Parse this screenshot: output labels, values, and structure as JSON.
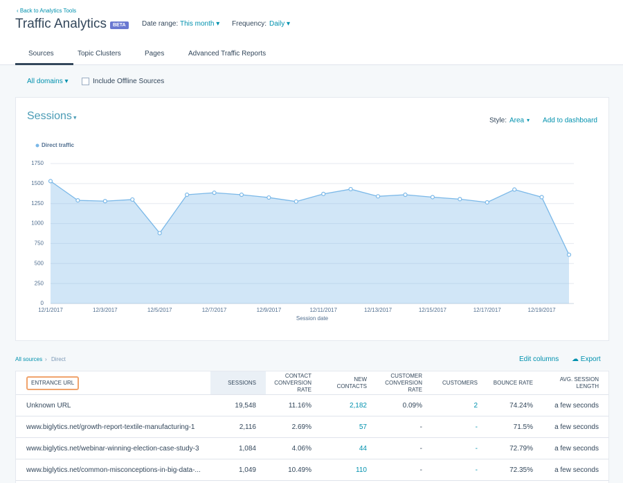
{
  "header": {
    "back_link": "Back to Analytics Tools",
    "title": "Traffic Analytics",
    "badge": "BETA",
    "date_range_label": "Date range:",
    "date_range_value": "This month",
    "frequency_label": "Frequency:",
    "frequency_value": "Daily"
  },
  "tabs": [
    "Sources",
    "Topic Clusters",
    "Pages",
    "Advanced Traffic Reports"
  ],
  "filters": {
    "domains": "All domains",
    "offline": "Include Offline Sources"
  },
  "chart_data": {
    "type": "area",
    "title": "Sessions",
    "style_label": "Style:",
    "style_value": "Area",
    "add_link": "Add to dashboard",
    "x_label": "Session date",
    "categories": [
      "12/1/2017",
      null,
      "12/3/2017",
      null,
      "12/5/2017",
      null,
      "12/7/2017",
      null,
      "12/9/2017",
      null,
      "12/11/2017",
      null,
      "12/13/2017",
      null,
      "12/15/2017",
      null,
      "12/17/2017",
      null,
      "12/19/2017",
      null
    ],
    "series": [
      {
        "name": "Direct traffic",
        "color": "#7ab8e8",
        "values": [
          1530,
          1290,
          1280,
          1300,
          880,
          1360,
          1385,
          1360,
          1325,
          1275,
          1370,
          1430,
          1340,
          1360,
          1330,
          1305,
          1265,
          1425,
          1330,
          610
        ]
      }
    ],
    "ylim": [
      0,
      1750
    ],
    "yticks": [
      0,
      250,
      500,
      750,
      1000,
      1250,
      1500,
      1750
    ],
    "grid": true
  },
  "breadcrumb": {
    "root": "All sources",
    "current": "Direct"
  },
  "actions": {
    "edit": "Edit columns",
    "export": "Export"
  },
  "table": {
    "columns": [
      "ENTRANCE URL",
      "SESSIONS",
      "CONTACT CONVERSION RATE",
      "NEW CONTACTS",
      "CUSTOMER CONVERSION RATE",
      "CUSTOMERS",
      "BOUNCE RATE",
      "AVG. SESSION LENGTH"
    ],
    "rows": [
      [
        "Unknown URL",
        "19,548",
        "11.16%",
        "2,182",
        "0.09%",
        "2",
        "74.24%",
        "a few seconds"
      ],
      [
        "www.biglytics.net/growth-report-textile-manufacturing-1",
        "2,116",
        "2.69%",
        "57",
        "-",
        "-",
        "71.5%",
        "a few seconds"
      ],
      [
        "www.biglytics.net/webinar-winning-election-case-study-3",
        "1,084",
        "4.06%",
        "44",
        "-",
        "-",
        "72.79%",
        "a few seconds"
      ],
      [
        "www.biglytics.net/common-misconceptions-in-big-data-...",
        "1,049",
        "10.49%",
        "110",
        "-",
        "-",
        "72.35%",
        "a few seconds"
      ]
    ]
  }
}
